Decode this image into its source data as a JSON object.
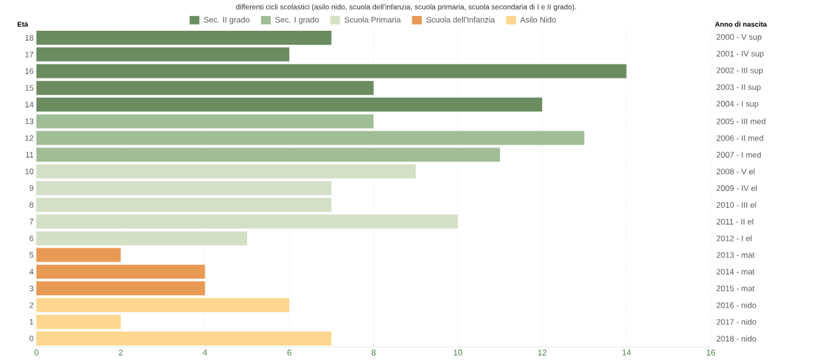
{
  "chart_data": {
    "type": "bar",
    "orientation": "horizontal",
    "subtitle": "differenti cicli scolastici (asilo nido, scuola dell'infanzia, scuola primaria, scuola secondaria di I e II grado).",
    "ylabel": "Età",
    "y2label": "Anno di nascita",
    "categories": [
      "18",
      "17",
      "16",
      "15",
      "14",
      "13",
      "12",
      "11",
      "10",
      "9",
      "8",
      "7",
      "6",
      "5",
      "4",
      "3",
      "2",
      "1",
      "0"
    ],
    "y2_categories": [
      "2000 - V sup",
      "2001 - IV sup",
      "2002 - III sup",
      "2003 - II sup",
      "2004 - I sup",
      "2005 - III med",
      "2006 - II med",
      "2007 - I med",
      "2008 - V el",
      "2009 - IV el",
      "2010 - III el",
      "2011 - II el",
      "2012 - I el",
      "2013 - mat",
      "2014 - mat",
      "2015 - mat",
      "2016 - nido",
      "2017 - nido",
      "2018 - nido"
    ],
    "series": [
      {
        "name": "Sec. II grado",
        "color": "#6b8c5e",
        "values": [
          7,
          6,
          14,
          8,
          12,
          null,
          null,
          null,
          null,
          null,
          null,
          null,
          null,
          null,
          null,
          null,
          null,
          null,
          null
        ]
      },
      {
        "name": "Sec. I grado",
        "color": "#a0bd96",
        "values": [
          null,
          null,
          null,
          null,
          null,
          8,
          13,
          11,
          null,
          null,
          null,
          null,
          null,
          null,
          null,
          null,
          null,
          null,
          null
        ]
      },
      {
        "name": "Scuola Primaria",
        "color": "#d4e0c6",
        "values": [
          null,
          null,
          null,
          null,
          null,
          null,
          null,
          null,
          9,
          7,
          7,
          10,
          5,
          null,
          null,
          null,
          null,
          null,
          null
        ]
      },
      {
        "name": "Scuola dell'Infanzia",
        "color": "#e89a55",
        "values": [
          null,
          null,
          null,
          null,
          null,
          null,
          null,
          null,
          null,
          null,
          null,
          null,
          null,
          2,
          4,
          4,
          null,
          null,
          null
        ]
      },
      {
        "name": "Asilo Nido",
        "color": "#fdd78e",
        "values": [
          null,
          null,
          null,
          null,
          null,
          null,
          null,
          null,
          null,
          null,
          null,
          null,
          null,
          null,
          null,
          null,
          6,
          2,
          7
        ]
      }
    ],
    "xlim": [
      0,
      16
    ],
    "xticks": [
      0,
      2,
      4,
      6,
      8,
      10,
      12,
      14,
      16
    ],
    "grid": "x",
    "legend": "top"
  }
}
